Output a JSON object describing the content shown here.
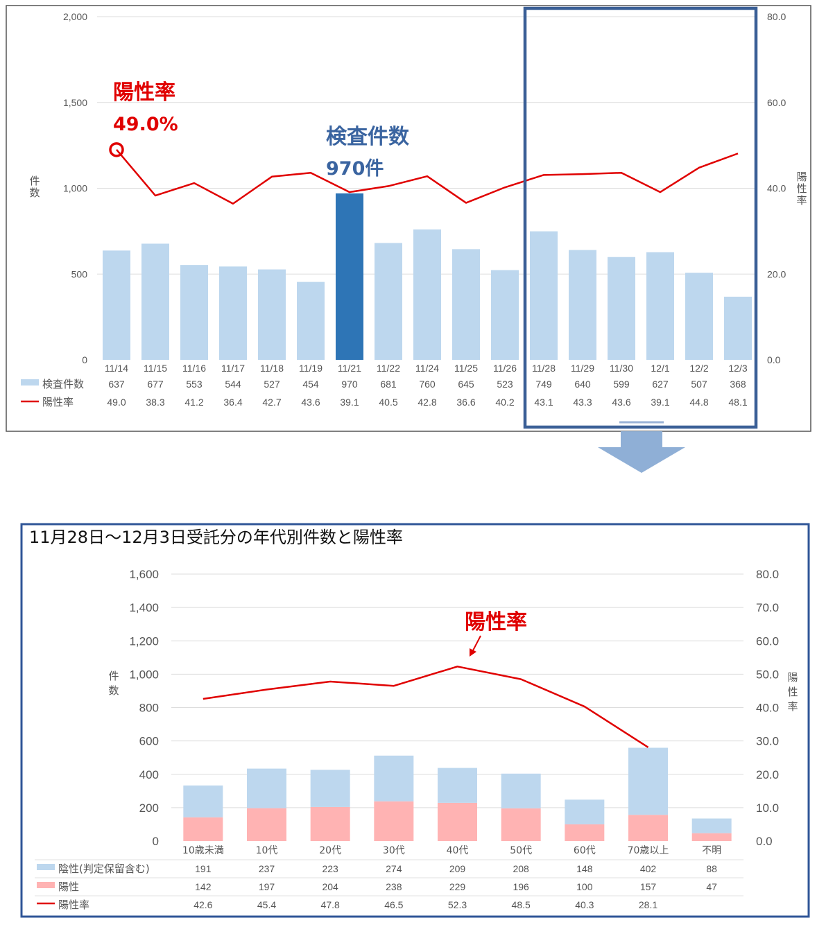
{
  "chart_data": [
    {
      "type": "bar",
      "categories": [
        "11/14",
        "11/15",
        "11/16",
        "11/17",
        "11/18",
        "11/19",
        "11/21",
        "11/22",
        "11/24",
        "11/25",
        "11/26",
        "11/28",
        "11/29",
        "11/30",
        "12/1",
        "12/2",
        "12/3"
      ],
      "series": [
        {
          "name": "検査件数",
          "type": "bar",
          "axis": "left",
          "values": [
            637,
            677,
            553,
            544,
            527,
            454,
            970,
            681,
            760,
            645,
            523,
            749,
            640,
            599,
            627,
            507,
            368
          ],
          "color": "#bdd7ee",
          "highlight_color": "#2e75b6",
          "highlight_index": 6
        },
        {
          "name": "陽性率",
          "type": "line",
          "axis": "right",
          "values": [
            49.0,
            38.3,
            41.2,
            36.4,
            42.7,
            43.6,
            39.1,
            40.5,
            42.8,
            36.6,
            40.2,
            43.1,
            43.3,
            43.6,
            39.1,
            44.8,
            48.1
          ],
          "color": "#e00000"
        }
      ],
      "ylabel": "件数",
      "y2label": "陽性率",
      "ylim": [
        0,
        2000
      ],
      "y2lim": [
        0,
        80
      ],
      "yticks": [
        "0",
        "500",
        "1,000",
        "1,500",
        "2,000"
      ],
      "y2ticks": [
        "0.0",
        "20.0",
        "40.0",
        "60.0",
        "80.0"
      ],
      "table_labels": [
        "検査件数",
        "陽性率"
      ],
      "annotations": [
        {
          "title": "陽性率",
          "value": "49.0%",
          "color": "#e00000"
        },
        {
          "title": "検査件数",
          "value": "970件",
          "color": "#3a64a0"
        }
      ],
      "highlight_range": [
        "11/28",
        "12/3"
      ]
    },
    {
      "type": "bar",
      "title": "11月28日～12月3日受託分の年代別件数と陽性率",
      "categories": [
        "10歳未満",
        "10代",
        "20代",
        "30代",
        "40代",
        "50代",
        "60代",
        "70歳以上",
        "不明"
      ],
      "series": [
        {
          "name": "陰性(判定保留含む)",
          "type": "bar",
          "stacked": true,
          "axis": "left",
          "values": [
            191,
            237,
            223,
            274,
            209,
            208,
            148,
            402,
            88
          ],
          "color": "#bdd7ee"
        },
        {
          "name": "陽性",
          "type": "bar",
          "stacked": true,
          "axis": "left",
          "values": [
            142,
            197,
            204,
            238,
            229,
            196,
            100,
            157,
            47
          ],
          "color": "#ffb3b3"
        },
        {
          "name": "陽性率",
          "type": "line",
          "axis": "right",
          "values": [
            42.6,
            45.4,
            47.8,
            46.5,
            52.3,
            48.5,
            40.3,
            28.1,
            null
          ],
          "color": "#e00000"
        }
      ],
      "ylabel": "件数",
      "y2label": "陽性率",
      "ylim": [
        0,
        1600
      ],
      "y2lim": [
        0,
        80
      ],
      "yticks": [
        "0",
        "200",
        "400",
        "600",
        "800",
        "1,000",
        "1,200",
        "1,400",
        "1,600"
      ],
      "y2ticks": [
        "0.0",
        "10.0",
        "20.0",
        "30.0",
        "40.0",
        "50.0",
        "60.0",
        "70.0",
        "80.0"
      ],
      "annotation": "陽性率"
    }
  ]
}
